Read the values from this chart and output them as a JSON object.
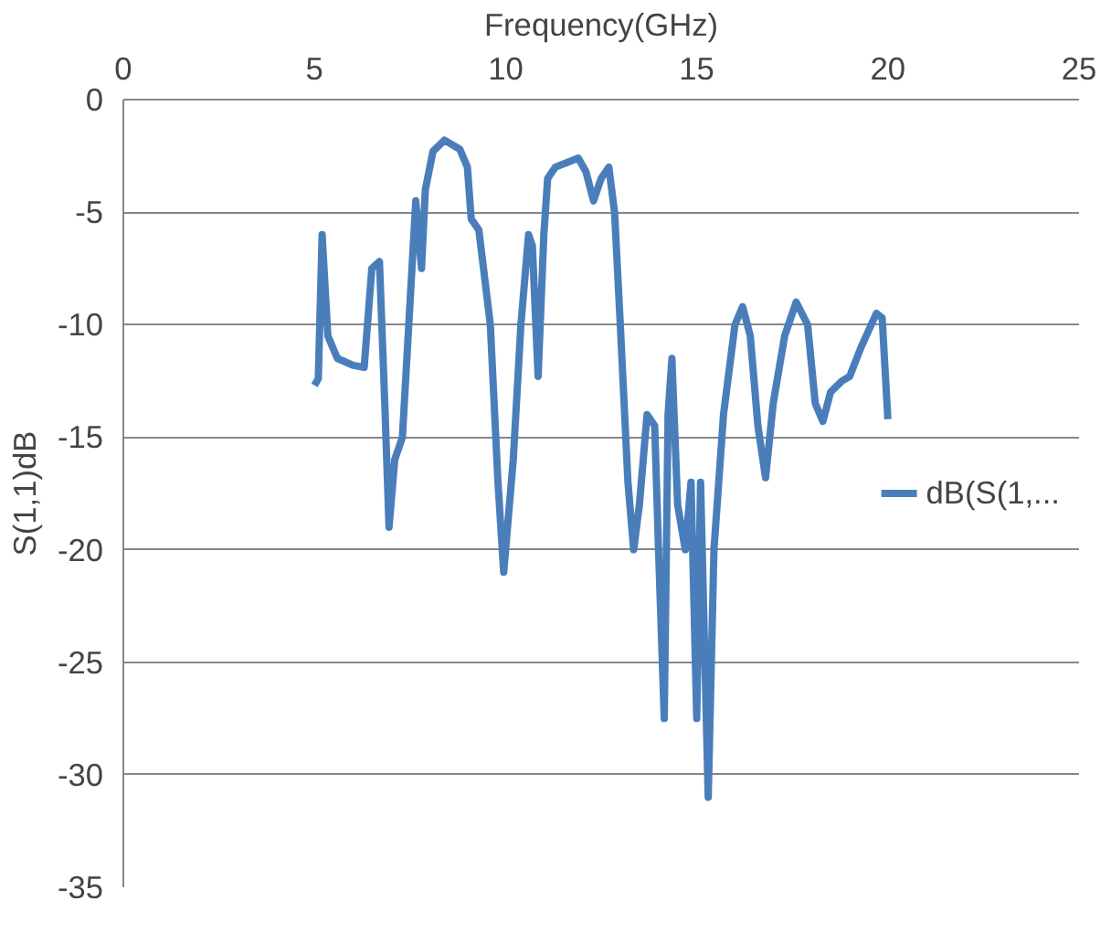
{
  "chart_data": {
    "type": "line",
    "xlabel": "Frequency(GHz)",
    "ylabel": "S(1,1)dB",
    "xlim": [
      0,
      25
    ],
    "xticks": [
      0,
      5,
      10,
      15,
      20,
      25
    ],
    "ylim": [
      -35,
      0
    ],
    "yticks": [
      0,
      -5,
      -10,
      -15,
      -20,
      -25,
      -30,
      -35
    ],
    "grid": "y",
    "legend": "right",
    "marker": "none",
    "line_style": "solid",
    "series": [
      {
        "name": "dB(S(1,...",
        "color": "#4a7ebb",
        "x": [
          5.0,
          5.1,
          5.2,
          5.35,
          5.6,
          6.0,
          6.3,
          6.5,
          6.7,
          6.85,
          6.95,
          7.1,
          7.3,
          7.5,
          7.65,
          7.8,
          7.9,
          8.1,
          8.4,
          8.8,
          9.0,
          9.1,
          9.3,
          9.6,
          9.8,
          9.95,
          10.2,
          10.4,
          10.6,
          10.7,
          10.85,
          11.0,
          11.1,
          11.3,
          11.6,
          11.9,
          12.1,
          12.3,
          12.5,
          12.7,
          12.85,
          13.0,
          13.2,
          13.35,
          13.5,
          13.7,
          13.9,
          14.0,
          14.15,
          14.25,
          14.35,
          14.5,
          14.7,
          14.85,
          15.0,
          15.1,
          15.3,
          15.45,
          15.7,
          16.0,
          16.2,
          16.4,
          16.6,
          16.8,
          17.0,
          17.3,
          17.6,
          17.9,
          18.1,
          18.3,
          18.5,
          18.8,
          19.0,
          19.3,
          19.7,
          19.85,
          20.0
        ],
        "values": [
          -12.7,
          -12.4,
          -6.0,
          -10.5,
          -11.5,
          -11.8,
          -11.9,
          -7.5,
          -7.2,
          -14,
          -19.0,
          -16,
          -15,
          -9,
          -4.5,
          -7.5,
          -4.0,
          -2.3,
          -1.8,
          -2.2,
          -3.0,
          -5.3,
          -5.8,
          -10,
          -17,
          -21,
          -16,
          -10,
          -6,
          -6.5,
          -12.3,
          -6,
          -3.5,
          -3.0,
          -2.8,
          -2.6,
          -3.2,
          -4.5,
          -3.5,
          -3.0,
          -5,
          -10,
          -17,
          -20.0,
          -18,
          -14,
          -14.5,
          -20,
          -27.5,
          -14,
          -11.5,
          -18,
          -20,
          -17,
          -27.5,
          -17,
          -31,
          -20,
          -14,
          -10,
          -9.2,
          -10.5,
          -14.5,
          -16.8,
          -13.5,
          -10.5,
          -9.0,
          -10,
          -13.5,
          -14.3,
          -13,
          -12.5,
          -12.3,
          -11,
          -9.5,
          -9.7,
          -14.2
        ]
      }
    ]
  }
}
